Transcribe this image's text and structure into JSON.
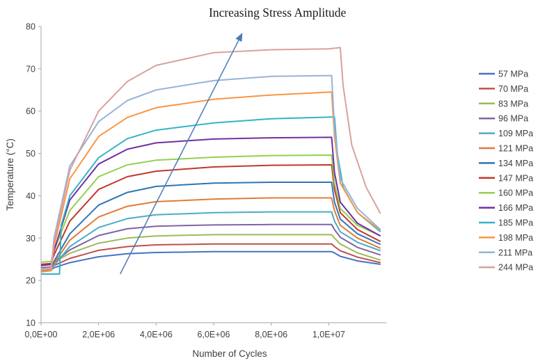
{
  "chart_data": {
    "type": "line",
    "title": "",
    "xlabel": "Number of Cycles",
    "ylabel": "Temperature (°C)",
    "xlim": [
      0,
      12000000
    ],
    "ylim": [
      10,
      80
    ],
    "grid": false,
    "legend_position": "right",
    "x_ticks": [
      {
        "value": 0,
        "label": "0,0E+00"
      },
      {
        "value": 2000000,
        "label": "2,0E+06"
      },
      {
        "value": 4000000,
        "label": "4,0E+06"
      },
      {
        "value": 6000000,
        "label": "6,0E+06"
      },
      {
        "value": 8000000,
        "label": "8,0E+06"
      },
      {
        "value": 10000000,
        "label": "1,0E+07"
      }
    ],
    "y_ticks": [
      {
        "value": 10,
        "label": "10"
      },
      {
        "value": 20,
        "label": "20"
      },
      {
        "value": 30,
        "label": "30"
      },
      {
        "value": 40,
        "label": "40"
      },
      {
        "value": 50,
        "label": "50"
      },
      {
        "value": 60,
        "label": "60"
      },
      {
        "value": 70,
        "label": "70"
      },
      {
        "value": 80,
        "label": "80"
      }
    ],
    "annotation": {
      "text": "Increasing Stress Amplitude",
      "arrow_from": [
        2750000,
        21.5
      ],
      "arrow_to": [
        7000000,
        78.5
      ],
      "color": "#4a7ab8"
    },
    "series": [
      {
        "name": "57 MPa",
        "color": "#4472c4",
        "x": [
          0,
          350000,
          450000,
          1000000,
          2000000,
          3000000,
          4000000,
          6000000,
          8000000,
          10100000,
          10200000,
          10400000,
          11000000,
          11800000
        ],
        "y": [
          22.3,
          22.5,
          23.0,
          24.2,
          25.6,
          26.3,
          26.6,
          26.8,
          26.8,
          26.8,
          26.5,
          25.7,
          24.6,
          23.8
        ]
      },
      {
        "name": "70 MPa",
        "color": "#c0504d",
        "x": [
          0,
          350000,
          450000,
          1000000,
          2000000,
          3000000,
          4000000,
          6000000,
          8000000,
          10100000,
          10200000,
          10400000,
          11000000,
          11800000
        ],
        "y": [
          22.7,
          22.9,
          23.5,
          25.2,
          27.1,
          28.0,
          28.4,
          28.6,
          28.6,
          28.6,
          28.0,
          27.0,
          25.5,
          24.2
        ]
      },
      {
        "name": "83 MPa",
        "color": "#9bbb59",
        "x": [
          0,
          350000,
          450000,
          1000000,
          2000000,
          3000000,
          4000000,
          6000000,
          8000000,
          10100000,
          10200000,
          10400000,
          11000000,
          11800000
        ],
        "y": [
          23.5,
          23.7,
          24.3,
          26.4,
          28.8,
          30.0,
          30.5,
          30.8,
          30.8,
          30.8,
          30.0,
          28.6,
          26.5,
          24.8
        ]
      },
      {
        "name": "96 MPa",
        "color": "#8064a2",
        "x": [
          0,
          350000,
          450000,
          1000000,
          2000000,
          3000000,
          4000000,
          6000000,
          8000000,
          10100000,
          10200000,
          10400000,
          11000000,
          11800000
        ],
        "y": [
          23.0,
          23.2,
          24.2,
          27.2,
          30.6,
          32.2,
          32.8,
          33.1,
          33.2,
          33.2,
          32.0,
          30.2,
          27.8,
          26.0
        ]
      },
      {
        "name": "109 MPa",
        "color": "#4bacc6",
        "x": [
          0,
          350000,
          450000,
          1000000,
          2000000,
          3000000,
          4000000,
          6000000,
          8000000,
          10100000,
          10200000,
          10400000,
          11000000,
          11800000
        ],
        "y": [
          22.0,
          22.3,
          23.5,
          28.0,
          32.5,
          34.6,
          35.5,
          36.0,
          36.2,
          36.2,
          34.0,
          31.5,
          29.0,
          27.0
        ]
      },
      {
        "name": "121 MPa",
        "color": "#e07b39",
        "x": [
          0,
          350000,
          450000,
          1000000,
          2000000,
          3000000,
          4000000,
          6000000,
          8000000,
          10100000,
          10200000,
          10400000,
          11000000,
          11800000
        ],
        "y": [
          22.2,
          22.5,
          24.0,
          29.5,
          35.0,
          37.5,
          38.6,
          39.2,
          39.5,
          39.5,
          36.5,
          33.0,
          30.0,
          27.6
        ]
      },
      {
        "name": "134 MPa",
        "color": "#2e75b6",
        "x": [
          0,
          350000,
          450000,
          1000000,
          2000000,
          3000000,
          4000000,
          6000000,
          8000000,
          10100000,
          10200000,
          10400000,
          11000000,
          11800000
        ],
        "y": [
          22.5,
          22.8,
          24.5,
          31.0,
          37.8,
          40.8,
          42.2,
          43.0,
          43.2,
          43.2,
          38.5,
          34.5,
          31.0,
          28.5
        ]
      },
      {
        "name": "147 MPa",
        "color": "#c0392b",
        "x": [
          0,
          350000,
          450000,
          1000000,
          2000000,
          3000000,
          4000000,
          6000000,
          8000000,
          10100000,
          10200000,
          10400000,
          11000000,
          11800000
        ],
        "y": [
          23.8,
          24.0,
          26.0,
          34.0,
          41.5,
          44.5,
          45.8,
          46.8,
          47.2,
          47.3,
          41.5,
          36.0,
          32.0,
          29.2
        ]
      },
      {
        "name": "160 MPa",
        "color": "#92d050",
        "x": [
          0,
          350000,
          450000,
          1000000,
          2000000,
          3000000,
          4000000,
          6000000,
          8000000,
          10100000,
          10200000,
          10400000,
          11000000,
          11800000
        ],
        "y": [
          24.3,
          24.5,
          27.0,
          36.5,
          44.5,
          47.3,
          48.4,
          49.1,
          49.5,
          49.6,
          43.0,
          37.0,
          33.0,
          30.5
        ]
      },
      {
        "name": "166 MPa",
        "color": "#7030a0",
        "x": [
          0,
          350000,
          450000,
          1000000,
          2000000,
          3000000,
          4000000,
          6000000,
          8000000,
          10100000,
          10200000,
          10400000,
          11000000,
          11800000
        ],
        "y": [
          23.5,
          23.8,
          27.0,
          39.0,
          47.5,
          51.0,
          52.5,
          53.4,
          53.7,
          53.8,
          45.5,
          38.5,
          33.5,
          30.5
        ]
      },
      {
        "name": "185 MPa",
        "color": "#31b4c8",
        "x": [
          0,
          400000,
          640000,
          700000,
          1000000,
          2000000,
          3000000,
          4000000,
          6000000,
          8000000,
          10100000,
          10200000,
          10300000,
          10500000,
          11000000,
          11800000
        ],
        "y": [
          21.5,
          21.5,
          21.5,
          33.0,
          40.0,
          49.0,
          53.5,
          55.5,
          57.2,
          58.2,
          58.6,
          58.6,
          50.0,
          42.0,
          36.0,
          31.5
        ]
      },
      {
        "name": "198 MPa",
        "color": "#f79646",
        "x": [
          0,
          350000,
          450000,
          1000000,
          2000000,
          3000000,
          4000000,
          6000000,
          8000000,
          10100000,
          10200000,
          10400000,
          11000000,
          11800000
        ],
        "y": [
          22.0,
          22.3,
          28.0,
          44.0,
          54.0,
          58.5,
          60.8,
          62.8,
          63.8,
          64.5,
          54.0,
          43.0,
          36.0,
          31.8
        ]
      },
      {
        "name": "211 MPa",
        "color": "#95b3d7",
        "x": [
          0,
          350000,
          450000,
          1000000,
          2000000,
          3000000,
          4000000,
          6000000,
          8000000,
          10100000,
          10200000,
          10400000,
          11000000,
          11800000
        ],
        "y": [
          22.5,
          22.8,
          30.0,
          47.0,
          57.5,
          62.5,
          65.0,
          67.2,
          68.2,
          68.4,
          56.0,
          44.0,
          37.0,
          32.0
        ]
      },
      {
        "name": "244 MPa",
        "color": "#d9a0a0",
        "x": [
          0,
          350000,
          450000,
          1000000,
          2000000,
          3000000,
          4000000,
          6000000,
          8000000,
          10000000,
          10400000,
          10500000,
          10800000,
          11300000,
          11800000
        ],
        "y": [
          22.7,
          23.0,
          29.0,
          46.0,
          60.0,
          67.0,
          70.8,
          73.8,
          74.5,
          74.7,
          75.0,
          66.0,
          52.0,
          42.0,
          35.8
        ]
      }
    ]
  }
}
